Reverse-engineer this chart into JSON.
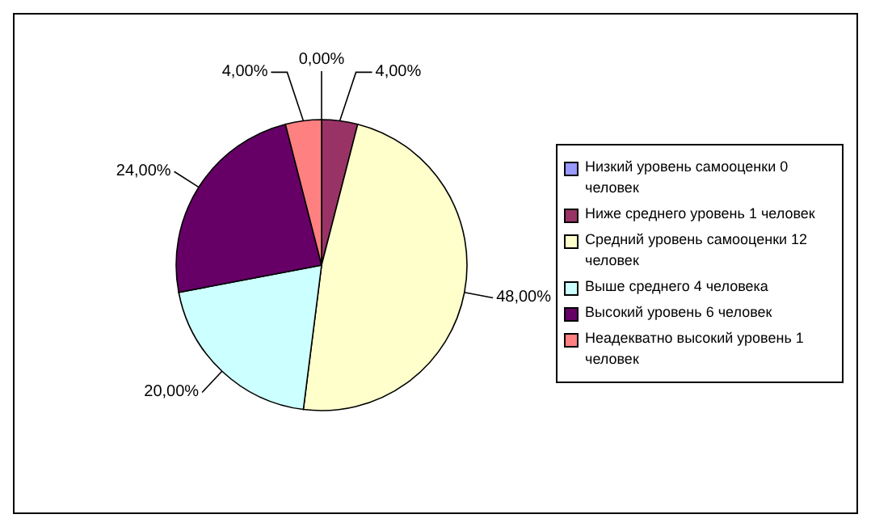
{
  "chart_data": {
    "type": "pie",
    "categories": [
      "Низкий уровень самооценки 0 человек",
      "Ниже среднего уровень  1 человек",
      "Средний уровень самооценки 12 человек",
      "Выше среднего  4 человека",
      "Высокий уровень  6 человек",
      "Неадекватно высокий уровень  1 человек"
    ],
    "values": [
      0,
      4,
      48,
      20,
      24,
      4
    ],
    "value_labels": [
      "0,00%",
      "4,00%",
      "48,00%",
      "20,00%",
      "24,00%",
      "4,00%"
    ],
    "colors": [
      "#9999ff",
      "#993366",
      "#ffffcc",
      "#ccffff",
      "#660066",
      "#ff8080"
    ],
    "legend": "right"
  }
}
